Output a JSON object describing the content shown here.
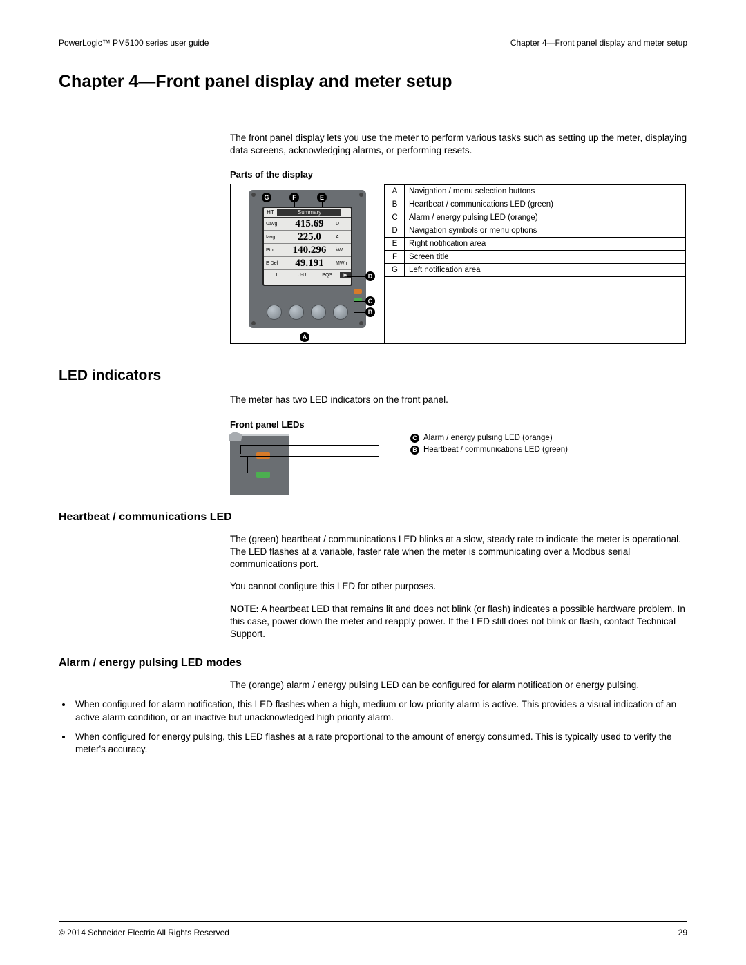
{
  "header": {
    "left": "PowerLogic™  PM5100 series user guide",
    "right": "Chapter 4—Front panel display and meter setup"
  },
  "chapter_title": "Chapter 4—Front panel display and meter setup",
  "intro": "The front panel display lets you use the meter to perform various tasks such as setting up the meter, displaying data screens, acknowledging alarms, or performing resets.",
  "parts_label": "Parts of the display",
  "device": {
    "screen_title_left": "HT",
    "screen_title": "Summary",
    "rows": [
      {
        "label": "Uavg",
        "value": "415.69",
        "unit": "U"
      },
      {
        "label": "Iavg",
        "value": "225.0",
        "unit": "A"
      },
      {
        "label": "Ptot",
        "value": "140.296",
        "unit": "kW"
      },
      {
        "label": "E Del",
        "value": "49.191",
        "unit": "MWh"
      }
    ],
    "bottom_tabs": [
      "I",
      "U-U",
      "PQS"
    ],
    "button_bg": "#7a8288",
    "body_bg": "#6a6e72",
    "screen_bg": "#e8e8e6"
  },
  "parts_table": [
    {
      "k": "A",
      "v": "Navigation / menu selection buttons"
    },
    {
      "k": "B",
      "v": "Heartbeat / communications LED (green)"
    },
    {
      "k": "C",
      "v": "Alarm / energy pulsing LED (orange)"
    },
    {
      "k": "D",
      "v": "Navigation symbols or menu options"
    },
    {
      "k": "E",
      "v": "Right notification area"
    },
    {
      "k": "F",
      "v": "Screen title"
    },
    {
      "k": "G",
      "v": "Left notification area"
    }
  ],
  "led_section_title": "LED indicators",
  "led_intro": "The meter has two LED indicators on the front panel.",
  "front_leds_label": "Front panel LEDs",
  "led_legend": [
    {
      "k": "C",
      "v": "Alarm / energy pulsing LED (orange)",
      "color": "#d87b2a"
    },
    {
      "k": "B",
      "v": "Heartbeat / communications LED (green)",
      "color": "#4caf50"
    }
  ],
  "heartbeat_title": "Heartbeat / communications LED",
  "heartbeat_p1": "The (green) heartbeat / communications LED blinks at a slow, steady rate to indicate the meter is operational. The LED flashes at a variable, faster rate when the meter is communicating over a Modbus serial communications port.",
  "heartbeat_p2": "You cannot configure this LED for other purposes.",
  "heartbeat_note_label": "NOTE:",
  "heartbeat_note": " A heartbeat LED that remains lit and does not blink (or flash) indicates a possible hardware problem. In this case, power down the meter and reapply power. If the LED still does not blink or flash, contact Technical Support.",
  "alarm_title": "Alarm / energy pulsing LED modes",
  "alarm_p1": "The (orange) alarm / energy pulsing LED can be configured for alarm notification or energy pulsing.",
  "alarm_bullets": [
    "When configured for alarm notification, this LED flashes when a high, medium or low priority alarm is active. This provides a visual indication of an active alarm condition, or an inactive but unacknowledged high priority alarm.",
    "When configured for energy pulsing, this LED flashes at a rate proportional to the amount of energy consumed. This is typically used to verify the meter's accuracy."
  ],
  "footer": {
    "copyright": "© 2014 Schneider Electric All Rights Reserved",
    "page": "29"
  },
  "colors": {
    "text": "#000000",
    "bg": "#ffffff",
    "led_orange": "#d87b2a",
    "led_green": "#4caf50"
  }
}
